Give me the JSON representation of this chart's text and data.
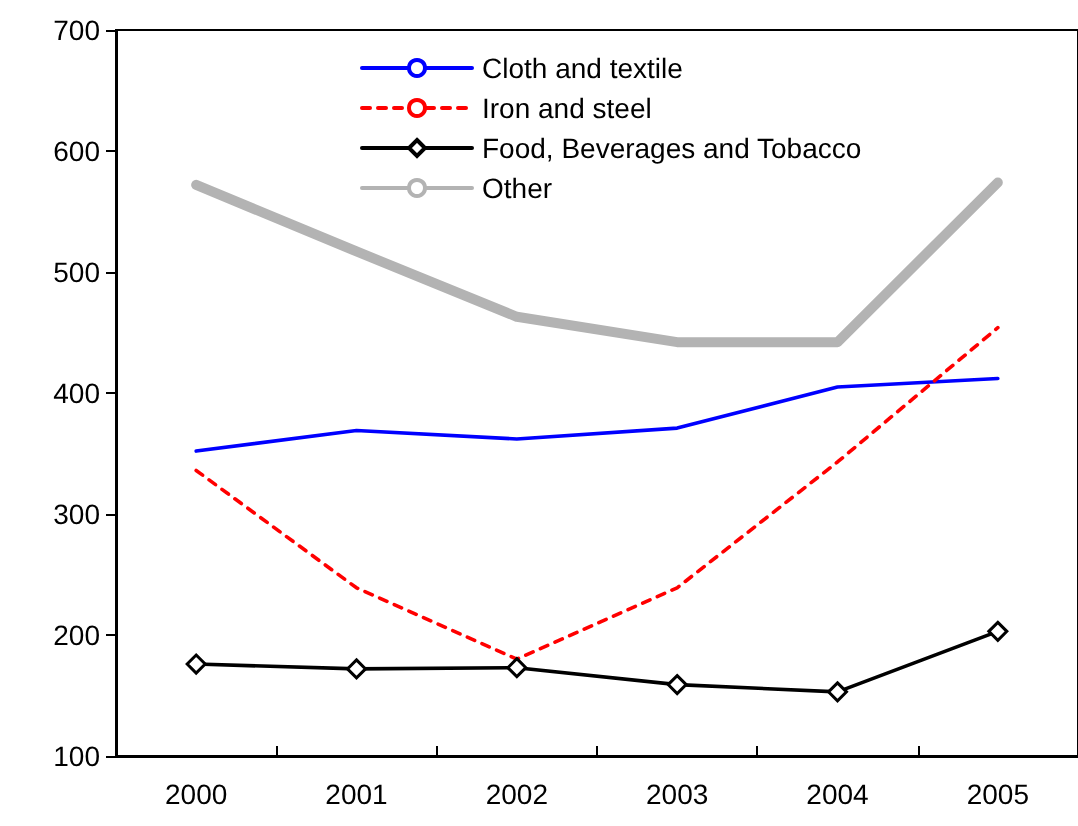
{
  "chart_data": {
    "type": "line",
    "categories": [
      "2000",
      "2001",
      "2002",
      "2003",
      "2004",
      "2005"
    ],
    "series": [
      {
        "name": "Cloth and textile",
        "color": "#0000ff",
        "line_style": "solid",
        "marker": "none",
        "values": [
          352,
          369,
          362,
          371,
          405,
          412
        ]
      },
      {
        "name": "Iron and steel",
        "color": "#ff0000",
        "line_style": "dashed",
        "marker": "none",
        "values": [
          336,
          239,
          180,
          239,
          343,
          454
        ]
      },
      {
        "name": "Food, Beverages and Tobacco",
        "color": "#000000",
        "line_style": "solid",
        "marker": "diamond",
        "values": [
          176,
          172,
          173,
          159,
          153,
          203
        ]
      },
      {
        "name": "Other",
        "color": "#b3b3b3",
        "line_style": "solid",
        "marker": "none",
        "values": [
          572,
          517,
          463,
          442,
          442,
          574
        ]
      }
    ],
    "ylim": [
      100,
      700
    ],
    "yticks": [
      100,
      200,
      300,
      400,
      500,
      600,
      700
    ],
    "grid": false,
    "legend": "top"
  }
}
